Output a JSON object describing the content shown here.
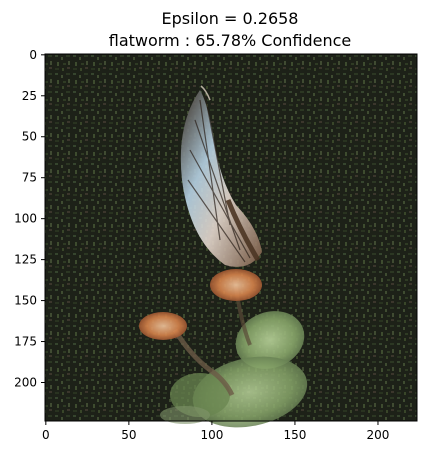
{
  "chart_data": {
    "type": "image",
    "title_line1": "Epsilon = 0.2658",
    "title_line2": "flatworm : 65.78% Confidence",
    "xlim": [
      -0.5,
      223.5
    ],
    "ylim": [
      223.5,
      -0.5
    ],
    "x_ticks": [
      0,
      50,
      100,
      150,
      200
    ],
    "y_ticks": [
      0,
      25,
      50,
      75,
      100,
      125,
      150,
      175,
      200
    ],
    "grid": false,
    "image_description_colors": {
      "background": "#1d2118",
      "leaf": "#8aa06a",
      "wing_light": "#d9c6b8",
      "wing_orange": "#c8784a",
      "flower_orange": "#d8864c",
      "noise_green": "#3a4a30",
      "noise_dark": "#0f120c"
    }
  }
}
